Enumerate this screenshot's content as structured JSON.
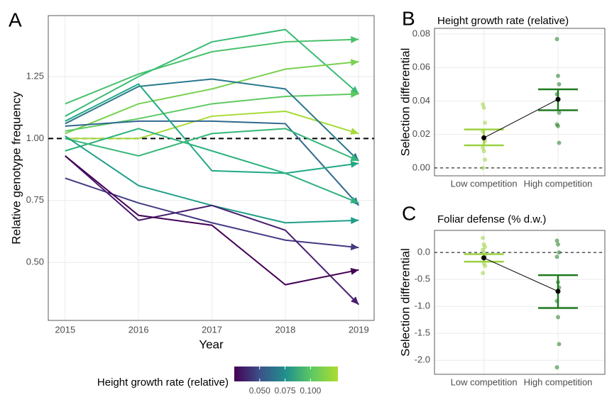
{
  "chart_data": [
    {
      "type": "line",
      "panel": "A",
      "x_label": "Year",
      "y_label": "Relative genotype frequency",
      "x": [
        2015,
        2016,
        2017,
        2018,
        2019
      ],
      "xlim": [
        2014.77,
        2019.21
      ],
      "xticks": [
        2015,
        2016,
        2017,
        2018,
        2019
      ],
      "ylim": [
        0.266,
        1.496
      ],
      "yticks": [
        {
          "value": 0.5,
          "label": "0.50"
        },
        {
          "value": 0.75,
          "label": "0.75"
        },
        {
          "value": 1,
          "label": "1.00"
        },
        {
          "value": 1.25,
          "label": "1.25"
        }
      ],
      "hline": 1,
      "grid": true,
      "arrows": true,
      "series": [
        {
          "color": "#4ac16d",
          "values": [
            1.14,
            1.26,
            1.35,
            1.39,
            1.4
          ]
        },
        {
          "color": "#3bbb75",
          "values": [
            1.09,
            1.25,
            1.39,
            1.44,
            1.18
          ]
        },
        {
          "color": "#7ad151",
          "values": [
            1.02,
            1.14,
            1.2,
            1.28,
            1.31
          ]
        },
        {
          "color": "#5ec962",
          "values": [
            1.03,
            1.08,
            1.14,
            1.17,
            1.18
          ]
        },
        {
          "color": "#a5db36",
          "values": [
            1.0,
            1.0,
            1.09,
            1.11,
            1.02
          ]
        },
        {
          "color": "#2a788e",
          "values": [
            1.06,
            1.21,
            1.24,
            1.2,
            0.91
          ]
        },
        {
          "color": "#31688e",
          "values": [
            1.05,
            1.07,
            1.07,
            1.06,
            0.73
          ]
        },
        {
          "color": "#22a884",
          "values": [
            1.07,
            1.22,
            0.87,
            0.86,
            0.9
          ]
        },
        {
          "color": "#2db27d",
          "values": [
            0.95,
            1.04,
            0.95,
            0.86,
            0.74
          ]
        },
        {
          "color": "#35b779",
          "values": [
            1.0,
            0.93,
            1.02,
            1.04,
            0.91
          ]
        },
        {
          "color": "#1f9e89",
          "values": [
            1.01,
            0.81,
            0.73,
            0.66,
            0.67
          ]
        },
        {
          "color": "#443a83",
          "values": [
            0.84,
            0.74,
            0.66,
            0.59,
            0.56
          ]
        },
        {
          "color": "#481f70",
          "values": [
            0.93,
            0.67,
            0.73,
            0.63,
            0.33
          ]
        },
        {
          "color": "#440154",
          "values": [
            0.93,
            0.69,
            0.65,
            0.41,
            0.47
          ]
        }
      ],
      "colorbar": {
        "title": "Height growth rate (relative)",
        "lim": [
          0.025,
          0.127
        ],
        "ticks": [
          {
            "value": 0.05,
            "label": "0.050"
          },
          {
            "value": 0.075,
            "label": "0.075"
          },
          {
            "value": 0.1,
            "label": "0.100"
          }
        ],
        "colors": [
          "#440154",
          "#3b528b",
          "#21918c",
          "#5ec962",
          "#addc30"
        ]
      }
    },
    {
      "type": "errorbar",
      "panel": "B",
      "title": "Height growth rate (relative)",
      "y_label": "Selection differential",
      "categories": [
        "Low competition",
        "High competition"
      ],
      "colors": [
        "#9bd13f",
        "#1f7a1f"
      ],
      "points": [
        [
          0.038,
          0.036,
          0.027,
          0.022,
          0.018,
          0.016,
          0.012,
          0.01,
          0.005,
          0.0
        ],
        [
          0.077,
          0.055,
          0.05,
          0.044,
          0.041,
          0.033,
          0.026,
          0.025,
          0.015
        ]
      ],
      "mean": [
        0.018,
        0.041
      ],
      "lower": [
        0.0135,
        0.0345
      ],
      "upper": [
        0.023,
        0.047
      ],
      "ylim": [
        -0.0047,
        0.0834
      ],
      "yticks": [
        {
          "value": 0,
          "label": "0.00"
        },
        0.02,
        0.04,
        0.06,
        0.08
      ],
      "hline": 0,
      "grid": true
    },
    {
      "type": "errorbar",
      "panel": "C",
      "title": "Foliar defense (% d.w.)",
      "y_label": "Selection differential",
      "categories": [
        "Low competition",
        "High competition"
      ],
      "colors": [
        "#9bd13f",
        "#1f7a1f"
      ],
      "points": [
        [
          0.27,
          0.15,
          0.1,
          0.05,
          0.0,
          -0.05,
          -0.1,
          -0.2,
          -0.25,
          -0.38
        ],
        [
          0.22,
          0.15,
          0.0,
          -0.08,
          -0.55,
          -0.65,
          -0.9,
          -1.2,
          -1.7,
          -2.13
        ]
      ],
      "mean": [
        -0.1,
        -0.72
      ],
      "lower": [
        -0.17,
        -1.03
      ],
      "upper": [
        -0.03,
        -0.42
      ],
      "ylim": [
        -2.26,
        0.41
      ],
      "yticks": [
        {
          "value": 0,
          "label": "0.0"
        },
        -0.5,
        {
          "value": -1,
          "label": "-1.0"
        },
        -1.5,
        {
          "value": -2,
          "label": "-2.0"
        }
      ],
      "hline": 0,
      "grid": true
    }
  ]
}
